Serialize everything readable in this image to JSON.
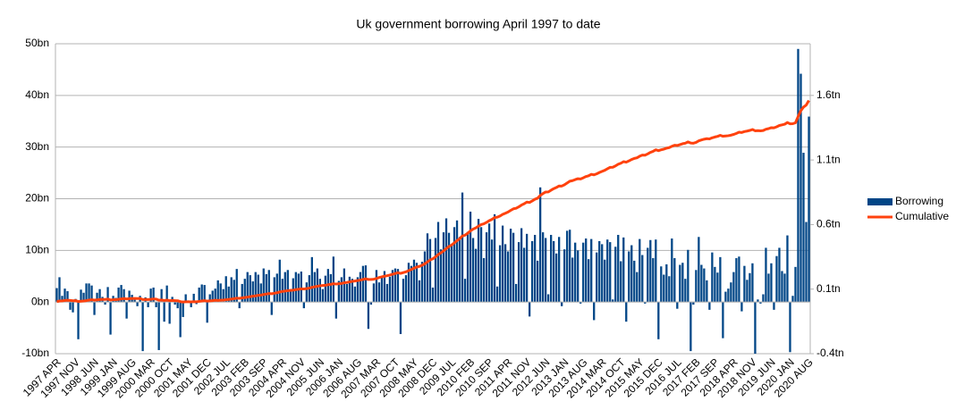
{
  "chart_data": {
    "type": "bar-line",
    "title": "Uk government borrowing April 1997 to date",
    "categories": [
      "1997 APR",
      null,
      null,
      null,
      null,
      null,
      null,
      "1997 NOV",
      null,
      null,
      null,
      null,
      null,
      null,
      "1998 JUN",
      null,
      null,
      null,
      null,
      null,
      null,
      "1999 JAN",
      null,
      null,
      null,
      null,
      null,
      null,
      "1999 AUG",
      null,
      null,
      null,
      null,
      null,
      null,
      "2000 MAR",
      null,
      null,
      null,
      null,
      null,
      null,
      "2000 OCT",
      null,
      null,
      null,
      null,
      null,
      null,
      "2001 MAY",
      null,
      null,
      null,
      null,
      null,
      null,
      "2001 DEC",
      null,
      null,
      null,
      null,
      null,
      null,
      "2002 JUL",
      null,
      null,
      null,
      null,
      null,
      null,
      "2003 FEB",
      null,
      null,
      null,
      null,
      null,
      null,
      "2003 SEP",
      null,
      null,
      null,
      null,
      null,
      null,
      "2004 APR",
      null,
      null,
      null,
      null,
      null,
      null,
      "2004 NOV",
      null,
      null,
      null,
      null,
      null,
      null,
      "2005 JUN",
      null,
      null,
      null,
      null,
      null,
      null,
      "2006 JAN",
      null,
      null,
      null,
      null,
      null,
      null,
      "2006 AUG",
      null,
      null,
      null,
      null,
      null,
      null,
      "2007 MAR",
      null,
      null,
      null,
      null,
      null,
      null,
      "2007 OCT",
      null,
      null,
      null,
      null,
      null,
      null,
      "2008 MAY",
      null,
      null,
      null,
      null,
      null,
      null,
      "2008 DEC",
      null,
      null,
      null,
      null,
      null,
      null,
      "2009 JUL",
      null,
      null,
      null,
      null,
      null,
      null,
      "2010 FEB",
      null,
      null,
      null,
      null,
      null,
      null,
      "2010 SEP",
      null,
      null,
      null,
      null,
      null,
      null,
      "2011 APR",
      null,
      null,
      null,
      null,
      null,
      null,
      "2011 NOV",
      null,
      null,
      null,
      null,
      null,
      null,
      "2012 JUN",
      null,
      null,
      null,
      null,
      null,
      null,
      "2013 JAN",
      null,
      null,
      null,
      null,
      null,
      null,
      "2013 AUG",
      null,
      null,
      null,
      null,
      null,
      null,
      "2014 MAR",
      null,
      null,
      null,
      null,
      null,
      null,
      "2014 OCT",
      null,
      null,
      null,
      null,
      null,
      null,
      "2015 MAY",
      null,
      null,
      null,
      null,
      null,
      null,
      "2015 DEC",
      null,
      null,
      null,
      null,
      null,
      null,
      "2016 JUL",
      null,
      null,
      null,
      null,
      null,
      null,
      "2017 FEB",
      null,
      null,
      null,
      null,
      null,
      null,
      "2017 SEP",
      null,
      null,
      null,
      null,
      null,
      null,
      "2018 APR",
      null,
      null,
      null,
      null,
      null,
      null,
      "2018 NOV",
      null,
      null,
      null,
      null,
      null,
      null,
      "2019 JUN",
      null,
      null,
      null,
      null,
      null,
      null,
      "2020 JAN",
      null,
      null,
      null,
      null,
      null,
      null,
      "2020 AUG"
    ],
    "series": [
      {
        "name": "Borrowing",
        "color": "#004586",
        "type": "bar",
        "values": [
          2.7,
          4.8,
          1.2,
          2.6,
          2.1,
          -1.5,
          -2.0,
          0.6,
          -7.2,
          2.4,
          1.8,
          3.6,
          3.6,
          3.2,
          -2.5,
          1.8,
          2.5,
          1.0,
          -0.5,
          2.9,
          -6.3,
          1.2,
          0.8,
          2.8,
          3.3,
          2.5,
          -3.2,
          2.2,
          1.4,
          0.8,
          -0.8,
          1.2,
          -9.5,
          0.9,
          -1.0,
          2.6,
          2.8,
          -1.0,
          -9.3,
          2.5,
          -3.8,
          3.2,
          -4.2,
          1.0,
          -0.5,
          -1.2,
          -6.8,
          -2.9,
          1.5,
          0.3,
          -1.0,
          1.6,
          -0.4,
          2.8,
          3.4,
          3.3,
          -4.0,
          1.5,
          2.2,
          2.6,
          4.2,
          3.6,
          2.5,
          5.0,
          3.0,
          4.8,
          4.3,
          6.4,
          -1.2,
          3.5,
          4.5,
          5.8,
          5.2,
          4.0,
          5.8,
          5.3,
          3.6,
          6.5,
          5.4,
          6.2,
          -2.5,
          4.8,
          5.5,
          8.2,
          4.5,
          5.8,
          6.2,
          2.5,
          4.6,
          5.8,
          5.5,
          5.9,
          -1.2,
          3.8,
          5.2,
          8.7,
          5.8,
          6.5,
          4.5,
          2.5,
          5.1,
          6.4,
          5.4,
          8.8,
          -3.2,
          4.1,
          4.8,
          6.5,
          3.5,
          4.9,
          4.5,
          3.0,
          4.8,
          5.8,
          7.0,
          7.1,
          -5.2,
          -0.5,
          3.6,
          6.2,
          3.8,
          5.0,
          6.0,
          3.5,
          4.9,
          6.2,
          6.5,
          6.4,
          -6.2,
          4.5,
          5.2,
          7.6,
          7.0,
          8.2,
          7.6,
          4.2,
          7.8,
          9.8,
          13.3,
          12.2,
          2.8,
          12.4,
          15.5,
          10.2,
          13.5,
          16.2,
          13.4,
          11.0,
          14.5,
          15.8,
          12.6,
          21.2,
          4.5,
          13.6,
          17.5,
          12.4,
          10.3,
          16.1,
          14.5,
          8.5,
          13.5,
          15.2,
          12.1,
          17.0,
          3.0,
          11.0,
          14.8,
          11.2,
          9.8,
          14.2,
          13.4,
          3.5,
          11.6,
          14.3,
          10.5,
          13.2,
          -2.8,
          11.8,
          13.0,
          8.0,
          22.2,
          13.5,
          12.4,
          1.5,
          13.0,
          11.8,
          9.4,
          12.6,
          -0.8,
          10.2,
          13.8,
          14.0,
          8.6,
          11.5,
          10.0,
          -0.3,
          11.5,
          12.3,
          8.3,
          12.2,
          -3.5,
          9.6,
          11.8,
          11.2,
          8.2,
          12.1,
          11.6,
          0.5,
          10.7,
          13.0,
          7.9,
          12.5,
          -3.8,
          9.8,
          11.0,
          8.0,
          5.8,
          12.2,
          9.1,
          -0.3,
          10.5,
          12.0,
          8.5,
          12.1,
          -7.2,
          6.9,
          5.3,
          7.3,
          5.0,
          12.3,
          8.5,
          -1.3,
          7.2,
          7.6,
          4.5,
          10.1,
          -9.5,
          -0.5,
          6.2,
          12.6,
          7.2,
          6.5,
          4.2,
          -1.5,
          9.6,
          6.8,
          5.7,
          8.7,
          -7.0,
          2.0,
          2.6,
          3.8,
          5.8,
          8.5,
          8.8,
          -1.8,
          7.0,
          4.3,
          5.6,
          7.5,
          -10.0,
          0.5,
          -0.3,
          1.5,
          10.5,
          5.5,
          7.5,
          -1.5,
          8.9,
          10.5,
          6.0,
          5.5,
          12.9,
          -9.7,
          1.2,
          6.8,
          49.0,
          44.2,
          28.9,
          15.5,
          35.9
        ]
      },
      {
        "name": "Cumulative",
        "color": "#ff420e",
        "type": "line",
        "axis": "y2",
        "values": [
          0.003,
          0.008,
          0.009,
          0.012,
          0.014,
          0.012,
          0.01,
          0.011,
          0.004,
          0.006,
          0.008,
          0.011,
          0.015,
          0.018,
          0.015,
          0.017,
          0.019,
          0.02,
          0.02,
          0.023,
          0.016,
          0.018,
          0.018,
          0.021,
          0.024,
          0.027,
          0.024,
          0.026,
          0.027,
          0.028,
          0.027,
          0.028,
          0.019,
          0.02,
          0.019,
          0.021,
          0.024,
          0.023,
          0.014,
          0.016,
          0.012,
          0.015,
          0.011,
          0.012,
          0.011,
          0.01,
          0.003,
          0.0,
          0.002,
          0.002,
          0.001,
          0.003,
          0.002,
          0.005,
          0.008,
          0.011,
          0.007,
          0.009,
          0.011,
          0.014,
          0.012,
          0.014,
          0.015,
          0.018,
          0.02,
          0.023,
          0.026,
          0.03,
          0.029,
          0.032,
          0.035,
          0.038,
          0.042,
          0.045,
          0.048,
          0.052,
          0.054,
          0.058,
          0.062,
          0.066,
          0.064,
          0.068,
          0.072,
          0.078,
          0.082,
          0.085,
          0.088,
          0.09,
          0.092,
          0.096,
          0.099,
          0.102,
          0.101,
          0.104,
          0.108,
          0.114,
          0.118,
          0.122,
          0.126,
          0.128,
          0.13,
          0.134,
          0.137,
          0.142,
          0.139,
          0.142,
          0.144,
          0.149,
          0.152,
          0.156,
          0.16,
          0.163,
          0.166,
          0.17,
          0.175,
          0.18,
          0.175,
          0.175,
          0.177,
          0.182,
          0.19,
          0.195,
          0.2,
          0.204,
          0.209,
          0.215,
          0.221,
          0.227,
          0.222,
          0.228,
          0.234,
          0.243,
          0.252,
          0.262,
          0.271,
          0.276,
          0.285,
          0.296,
          0.311,
          0.326,
          0.335,
          0.35,
          0.368,
          0.381,
          0.396,
          0.414,
          0.43,
          0.442,
          0.458,
          0.476,
          0.49,
          0.512,
          0.518,
          0.533,
          0.551,
          0.565,
          0.574,
          0.588,
          0.6,
          0.606,
          0.617,
          0.63,
          0.64,
          0.654,
          0.657,
          0.666,
          0.679,
          0.688,
          0.697,
          0.71,
          0.722,
          0.726,
          0.737,
          0.751,
          0.761,
          0.774,
          0.771,
          0.783,
          0.796,
          0.804,
          0.826,
          0.84,
          0.852,
          0.853,
          0.866,
          0.878,
          0.887,
          0.899,
          0.898,
          0.908,
          0.922,
          0.936,
          0.94,
          0.948,
          0.955,
          0.953,
          0.962,
          0.972,
          0.978,
          0.989,
          0.985,
          0.993,
          1.003,
          1.012,
          1.02,
          1.032,
          1.043,
          1.044,
          1.054,
          1.067,
          1.075,
          1.087,
          1.083,
          1.093,
          1.104,
          1.112,
          1.117,
          1.129,
          1.138,
          1.137,
          1.147,
          1.159,
          1.167,
          1.179,
          1.172,
          1.179,
          1.184,
          1.191,
          1.196,
          1.206,
          1.214,
          1.212,
          1.219,
          1.226,
          1.23,
          1.24,
          1.231,
          1.23,
          1.236,
          1.248,
          1.255,
          1.261,
          1.265,
          1.263,
          1.272,
          1.278,
          1.283,
          1.291,
          1.284,
          1.286,
          1.288,
          1.292,
          1.298,
          1.306,
          1.315,
          1.313,
          1.32,
          1.324,
          1.329,
          1.336,
          1.326,
          1.327,
          1.326,
          1.328,
          1.338,
          1.343,
          1.35,
          1.349,
          1.357,
          1.367,
          1.372,
          1.377,
          1.39,
          1.38,
          1.381,
          1.388,
          1.437,
          1.481,
          1.51,
          1.525,
          1.561
        ]
      }
    ],
    "ylim": [
      -10,
      50
    ],
    "yticks": [
      {
        "value": -10,
        "label": "-10bn"
      },
      {
        "value": 0,
        "label": "0bn"
      },
      {
        "value": 10,
        "label": "10bn"
      },
      {
        "value": 20,
        "label": "20bn"
      },
      {
        "value": 30,
        "label": "30bn"
      },
      {
        "value": 40,
        "label": "40bn"
      },
      {
        "value": 50,
        "label": "50bn"
      }
    ],
    "y2lim": [
      -0.4,
      2.0
    ],
    "y2ticks": [
      {
        "value": -0.4,
        "label": "-0.4tn"
      },
      {
        "value": 0.1,
        "label": "0.1tn"
      },
      {
        "value": 0.6,
        "label": "0.6tn"
      },
      {
        "value": 1.1,
        "label": "1.1tn"
      },
      {
        "value": 1.6,
        "label": "1.6tn"
      }
    ],
    "grid": true,
    "legend": "right"
  }
}
